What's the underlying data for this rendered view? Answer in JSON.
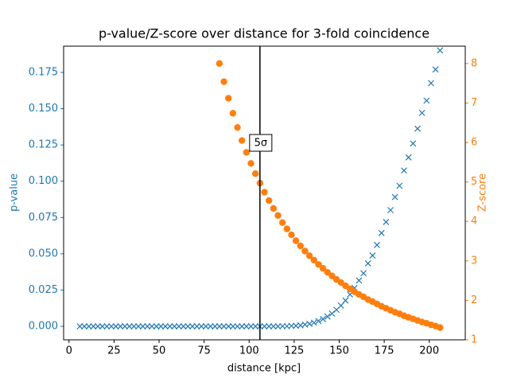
{
  "chart_data": {
    "type": "scatter",
    "title": "p-value/Z-score over distance for 3-fold coincidence",
    "xlabel": "distance [kpc]",
    "ylabel": "p-value",
    "y2label": "Z-score",
    "xlim": [
      -3,
      220
    ],
    "xticks": [
      0,
      25,
      50,
      75,
      100,
      125,
      150,
      175,
      200
    ],
    "ylim": [
      -0.0093,
      0.1931
    ],
    "yticks": [
      {
        "value": 0,
        "label": "0.000"
      },
      {
        "value": 0.025,
        "label": "0.025"
      },
      {
        "value": 0.05,
        "label": "0.050"
      },
      {
        "value": 0.075,
        "label": "0.075"
      },
      {
        "value": 0.1,
        "label": "0.100"
      },
      {
        "value": 0.125,
        "label": "0.125"
      },
      {
        "value": 0.15,
        "label": "0.150"
      },
      {
        "value": 0.175,
        "label": "0.175"
      }
    ],
    "y2lim": [
      1,
      8.44
    ],
    "y2ticks": [
      1,
      2,
      3,
      4,
      5,
      6,
      7,
      8
    ],
    "vline": 106,
    "annotation": "5σ",
    "annotation_y2": 6.0,
    "x": [
      6,
      8.5,
      11,
      13.5,
      16,
      18.5,
      21,
      23.5,
      26,
      28.5,
      31,
      33.5,
      36,
      38.5,
      41,
      43.5,
      46,
      48.5,
      51,
      53.5,
      56,
      58.5,
      61,
      63.5,
      66,
      68.5,
      71,
      73.5,
      76,
      78.5,
      81,
      83.5,
      86,
      88.5,
      91,
      93.5,
      96,
      98.5,
      101,
      103.5,
      106,
      108.5,
      111,
      113.5,
      116,
      118.5,
      121,
      123.5,
      126,
      128.5,
      131,
      133.5,
      136,
      138.5,
      141,
      143.5,
      146,
      148.5,
      151,
      153.5,
      156,
      158.5,
      161,
      163.5,
      166,
      168.5,
      171,
      173.5,
      176,
      178.5,
      181,
      183.5,
      186,
      188.5,
      191,
      193.5,
      196,
      198.5,
      201,
      203.5,
      206
    ],
    "series": [
      {
        "color": "#1f77b4",
        "marker": "x",
        "axis": "y",
        "values": [
          0,
          0,
          0,
          0,
          0,
          0,
          0,
          0,
          0,
          0,
          0,
          0,
          0,
          0,
          0,
          0,
          0,
          0,
          0,
          0,
          0,
          0,
          0,
          0,
          0,
          0,
          0,
          0,
          0,
          0,
          0,
          0,
          0,
          0,
          0,
          0,
          0,
          0,
          0,
          0,
          0,
          0,
          0,
          0,
          0,
          0.0001,
          0.0001,
          0.0003,
          0.0004,
          0.0007,
          0.0012,
          0.0017,
          0.0025,
          0.0036,
          0.005,
          0.0067,
          0.0088,
          0.0114,
          0.0143,
          0.0178,
          0.022,
          0.0264,
          0.0316,
          0.0366,
          0.0434,
          0.0488,
          0.0561,
          0.0643,
          0.0719,
          0.0801,
          0.0891,
          0.0969,
          0.1074,
          0.1164,
          0.126,
          0.1362,
          0.1471,
          0.1556,
          0.1676,
          0.177,
          0.1902
        ]
      },
      {
        "color": "#ff7f0e",
        "marker": "o",
        "axis": "y2",
        "values": [
          null,
          null,
          null,
          null,
          null,
          null,
          null,
          null,
          null,
          null,
          null,
          null,
          null,
          null,
          null,
          null,
          null,
          null,
          null,
          null,
          null,
          null,
          null,
          null,
          null,
          null,
          null,
          null,
          null,
          null,
          null,
          8.0,
          7.54,
          7.12,
          6.74,
          6.38,
          6.05,
          5.75,
          5.47,
          5.21,
          4.97,
          4.74,
          4.53,
          4.33,
          4.15,
          3.97,
          3.81,
          3.66,
          3.51,
          3.38,
          3.25,
          3.13,
          3.02,
          2.91,
          2.81,
          2.71,
          2.62,
          2.53,
          2.45,
          2.37,
          2.29,
          2.22,
          2.15,
          2.09,
          2.02,
          1.97,
          1.91,
          1.85,
          1.8,
          1.75,
          1.7,
          1.66,
          1.61,
          1.57,
          1.53,
          1.49,
          1.45,
          1.42,
          1.38,
          1.35,
          1.31
        ]
      }
    ]
  }
}
